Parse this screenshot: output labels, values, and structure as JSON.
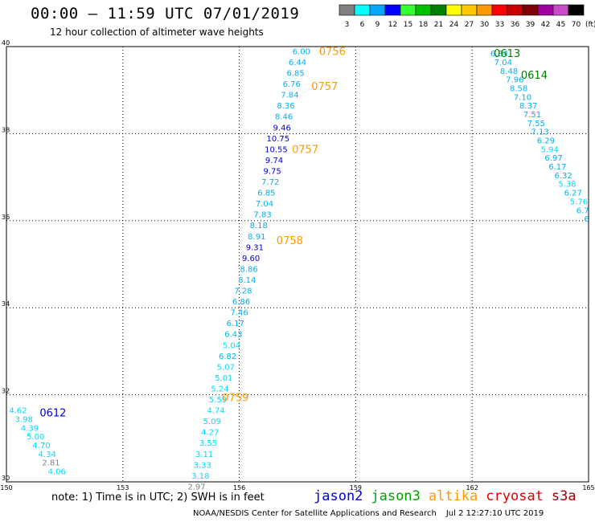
{
  "header": {
    "title": "00:00 — 11:59 UTC 07/01/2019",
    "subtitle": "12 hour collection of altimeter wave heights"
  },
  "color_scale": {
    "labels": [
      "3",
      "6",
      "9",
      "12",
      "15",
      "18",
      "21",
      "24",
      "27",
      "30",
      "33",
      "36",
      "39",
      "42",
      "45",
      "70"
    ],
    "unit": "(ft)",
    "colors": [
      "#808080",
      "#00ffff",
      "#00a8ff",
      "#0000ff",
      "#33ff33",
      "#00c000",
      "#008000",
      "#ffff00",
      "#ffc800",
      "#ff9900",
      "#ff0000",
      "#c80000",
      "#800000",
      "#a000a0",
      "#c84cc8",
      "#000000"
    ]
  },
  "chart_data": {
    "type": "scatter",
    "xlim": [
      150,
      165
    ],
    "ylim": [
      30,
      40
    ],
    "xticks": [
      "150",
      "153",
      "156",
      "159",
      "162",
      "165"
    ],
    "yticks": [
      "30",
      "32",
      "34",
      "36",
      "38",
      "40"
    ],
    "grid": true,
    "series": [
      {
        "name": "jason2",
        "time_labels": [
          {
            "text": "0612",
            "x": 151.2,
            "y": 31.6
          }
        ],
        "points": [
          {
            "x": 150.3,
            "y": 31.65,
            "v": "4.62"
          },
          {
            "x": 150.45,
            "y": 31.45,
            "v": "3.98"
          },
          {
            "x": 150.6,
            "y": 31.25,
            "v": "4.39"
          },
          {
            "x": 150.75,
            "y": 31.05,
            "v": "5.00"
          },
          {
            "x": 150.9,
            "y": 30.85,
            "v": "4.70"
          },
          {
            "x": 151.05,
            "y": 30.65,
            "v": "4.34"
          },
          {
            "x": 151.15,
            "y": 30.45,
            "v": "2.81"
          },
          {
            "x": 151.3,
            "y": 30.25,
            "v": "4.06"
          }
        ]
      },
      {
        "name": "jason3",
        "time_labels": [
          {
            "text": "0613",
            "x": 162.9,
            "y": 39.85
          },
          {
            "text": "0614",
            "x": 163.6,
            "y": 39.35
          }
        ],
        "points": [
          {
            "x": 162.7,
            "y": 39.85,
            "v": "6.84"
          },
          {
            "x": 162.8,
            "y": 39.65,
            "v": "7.04"
          },
          {
            "x": 162.95,
            "y": 39.45,
            "v": "8.48"
          },
          {
            "x": 163.1,
            "y": 39.25,
            "v": "7.96"
          },
          {
            "x": 163.2,
            "y": 39.05,
            "v": "8.58"
          },
          {
            "x": 163.3,
            "y": 38.85,
            "v": "7.10"
          },
          {
            "x": 163.45,
            "y": 38.65,
            "v": "8.37"
          },
          {
            "x": 163.55,
            "y": 38.45,
            "v": "7.51"
          },
          {
            "x": 163.65,
            "y": 38.25,
            "v": "7.55"
          },
          {
            "x": 163.75,
            "y": 38.05,
            "v": "7.13"
          },
          {
            "x": 163.9,
            "y": 37.85,
            "v": "6.29"
          },
          {
            "x": 164.0,
            "y": 37.65,
            "v": "5.94"
          },
          {
            "x": 164.1,
            "y": 37.45,
            "v": "6.97"
          },
          {
            "x": 164.2,
            "y": 37.25,
            "v": "6.17"
          },
          {
            "x": 164.35,
            "y": 37.05,
            "v": "6.32"
          },
          {
            "x": 164.45,
            "y": 36.85,
            "v": "5.38"
          },
          {
            "x": 164.6,
            "y": 36.65,
            "v": "6.27"
          },
          {
            "x": 164.75,
            "y": 36.45,
            "v": "5.76"
          },
          {
            "x": 164.85,
            "y": 36.25,
            "v": "6.7"
          },
          {
            "x": 164.95,
            "y": 36.05,
            "v": "6"
          }
        ]
      },
      {
        "name": "altika",
        "time_labels": [
          {
            "text": "0756",
            "x": 158.4,
            "y": 39.9
          },
          {
            "text": "0757",
            "x": 158.2,
            "y": 39.1
          },
          {
            "x": 157.7,
            "y": 37.65,
            "text": "0757"
          },
          {
            "x": 157.3,
            "y": 35.55,
            "text": "0758"
          },
          {
            "x": 155.9,
            "y": 31.95,
            "text": "0759"
          }
        ],
        "points": [
          {
            "x": 157.6,
            "y": 39.9,
            "v": "6.00"
          },
          {
            "x": 157.5,
            "y": 39.65,
            "v": "6.44"
          },
          {
            "x": 157.45,
            "y": 39.4,
            "v": "6.85"
          },
          {
            "x": 157.35,
            "y": 39.15,
            "v": "6.76"
          },
          {
            "x": 157.3,
            "y": 38.9,
            "v": "7.84"
          },
          {
            "x": 157.2,
            "y": 38.65,
            "v": "8.36"
          },
          {
            "x": 157.15,
            "y": 38.4,
            "v": "8.46"
          },
          {
            "x": 157.1,
            "y": 38.15,
            "v": "9.46"
          },
          {
            "x": 157.0,
            "y": 37.9,
            "v": "10.75"
          },
          {
            "x": 156.95,
            "y": 37.65,
            "v": "10.55"
          },
          {
            "x": 156.9,
            "y": 37.4,
            "v": "9.74"
          },
          {
            "x": 156.85,
            "y": 37.15,
            "v": "9.75"
          },
          {
            "x": 156.8,
            "y": 36.9,
            "v": "7.72"
          },
          {
            "x": 156.7,
            "y": 36.65,
            "v": "6.85"
          },
          {
            "x": 156.65,
            "y": 36.4,
            "v": "7.04"
          },
          {
            "x": 156.6,
            "y": 36.15,
            "v": "7.83"
          },
          {
            "x": 156.5,
            "y": 35.9,
            "v": "8.18"
          },
          {
            "x": 156.45,
            "y": 35.65,
            "v": "8.91"
          },
          {
            "x": 156.4,
            "y": 35.4,
            "v": "9.31"
          },
          {
            "x": 156.3,
            "y": 35.15,
            "v": "9.60"
          },
          {
            "x": 156.25,
            "y": 34.9,
            "v": "8.86"
          },
          {
            "x": 156.2,
            "y": 34.65,
            "v": "8.14"
          },
          {
            "x": 156.1,
            "y": 34.4,
            "v": "7.28"
          },
          {
            "x": 156.05,
            "y": 34.15,
            "v": "6.86"
          },
          {
            "x": 156.0,
            "y": 33.9,
            "v": "7.46"
          },
          {
            "x": 155.9,
            "y": 33.65,
            "v": "6.17"
          },
          {
            "x": 155.85,
            "y": 33.4,
            "v": "6.43"
          },
          {
            "x": 155.8,
            "y": 33.15,
            "v": "5.04"
          },
          {
            "x": 155.7,
            "y": 32.9,
            "v": "6.82"
          },
          {
            "x": 155.65,
            "y": 32.65,
            "v": "5.07"
          },
          {
            "x": 155.6,
            "y": 32.4,
            "v": "5.01"
          },
          {
            "x": 155.5,
            "y": 32.15,
            "v": "5.24"
          },
          {
            "x": 155.45,
            "y": 31.9,
            "v": "5.59"
          },
          {
            "x": 155.4,
            "y": 31.65,
            "v": "4.74"
          },
          {
            "x": 155.3,
            "y": 31.4,
            "v": "5.09"
          },
          {
            "x": 155.25,
            "y": 31.15,
            "v": "4.27"
          },
          {
            "x": 155.2,
            "y": 30.9,
            "v": "3.55"
          },
          {
            "x": 155.1,
            "y": 30.65,
            "v": "3.11"
          },
          {
            "x": 155.05,
            "y": 30.4,
            "v": "3.33"
          },
          {
            "x": 155.0,
            "y": 30.15,
            "v": "3.18"
          },
          {
            "x": 154.9,
            "y": 29.9,
            "v": "2.97"
          }
        ]
      }
    ]
  },
  "footer": {
    "note": "note: 1) Time is in UTC; 2) SWH is in feet",
    "legend": [
      {
        "label": "jason2",
        "color": "#0000e0"
      },
      {
        "label": "jason3",
        "color": "#00a000"
      },
      {
        "label": "altika",
        "color": "#ff9900"
      },
      {
        "label": "cryosat",
        "color": "#e00000"
      },
      {
        "label": "s3a",
        "color": "#a00000"
      }
    ],
    "credit": "NOAA/NESDIS Center for Satellite Applications and Research",
    "timestamp": "Jul  2 12:27:10 UTC 2019"
  }
}
